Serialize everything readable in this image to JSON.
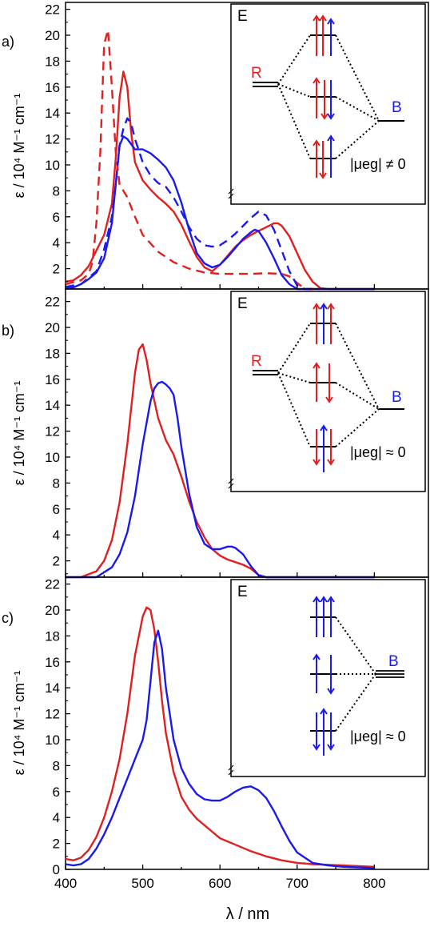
{
  "chart_data": [
    {
      "type": "line",
      "panel_label": "a)",
      "xlabel": "λ / nm",
      "ylabel": "ε / 10⁴ M⁻¹ cm⁻¹",
      "xlim": [
        400,
        870
      ],
      "ylim": [
        0,
        23
      ],
      "ytick_labels": [
        "2",
        "4",
        "6",
        "8",
        "10",
        "12",
        "14",
        "16",
        "18",
        "20",
        "22"
      ],
      "grid": false,
      "series": [
        {
          "color": "#e02020",
          "dash": false,
          "x": [
            400,
            410,
            420,
            430,
            440,
            450,
            460,
            465,
            470,
            475,
            480,
            485,
            490,
            500,
            510,
            520,
            530,
            540,
            550,
            560,
            570,
            580,
            590,
            600,
            610,
            620,
            630,
            640,
            650,
            660,
            670,
            675,
            680,
            690,
            700,
            710,
            720,
            730,
            740,
            760,
            780,
            800
          ],
          "y": [
            1.0,
            1.1,
            1.5,
            2.2,
            3.4,
            4.6,
            7.0,
            10.5,
            15.2,
            17.2,
            16.0,
            12.5,
            10.2,
            8.8,
            8.1,
            7.5,
            7.0,
            6.4,
            5.4,
            4.1,
            2.9,
            2.1,
            1.8,
            2.3,
            3.0,
            3.7,
            4.2,
            4.6,
            4.9,
            5.2,
            5.5,
            5.5,
            5.3,
            4.5,
            3.2,
            1.9,
            1.0,
            0.5,
            0.3,
            0.15,
            0.1,
            0.05
          ]
        },
        {
          "color": "#1a1aee",
          "dash": false,
          "x": [
            400,
            410,
            420,
            430,
            440,
            450,
            460,
            465,
            470,
            475,
            480,
            485,
            490,
            500,
            510,
            520,
            530,
            540,
            550,
            560,
            570,
            580,
            590,
            600,
            610,
            620,
            630,
            640,
            645,
            650,
            660,
            670,
            680,
            690,
            700,
            710,
            720,
            730,
            740,
            760,
            780,
            800
          ],
          "y": [
            0.5,
            0.55,
            0.8,
            1.2,
            1.7,
            2.8,
            5.5,
            8.5,
            11.5,
            12.2,
            12.0,
            11.6,
            11.2,
            11.2,
            10.9,
            10.4,
            9.8,
            8.8,
            7.1,
            5.0,
            3.2,
            2.4,
            2.1,
            2.3,
            2.9,
            3.6,
            4.3,
            4.8,
            5.0,
            4.9,
            4.0,
            2.8,
            1.5,
            0.8,
            0.4,
            0.2,
            0.12,
            0.08,
            0.05,
            0.02,
            0.01,
            0.01
          ]
        },
        {
          "color": "#e02020",
          "dash": true,
          "x": [
            400,
            420,
            430,
            435,
            440,
            445,
            450,
            455,
            460,
            465,
            470,
            480,
            490,
            500,
            520,
            540,
            560,
            580,
            600,
            620,
            640,
            660,
            680,
            690,
            700,
            710,
            720,
            730
          ],
          "y": [
            0.8,
            1.1,
            1.6,
            2.5,
            5.5,
            11.0,
            19.3,
            20.4,
            16.0,
            11.0,
            8.5,
            7.5,
            6.0,
            4.6,
            3.3,
            2.5,
            2.0,
            1.7,
            1.6,
            1.6,
            1.6,
            1.65,
            1.6,
            1.4,
            0.9,
            0.4,
            0.15,
            0.05
          ]
        },
        {
          "color": "#1a1aee",
          "dash": true,
          "x": [
            400,
            420,
            440,
            450,
            460,
            465,
            470,
            475,
            480,
            485,
            490,
            500,
            510,
            520,
            530,
            540,
            550,
            560,
            570,
            580,
            590,
            600,
            610,
            620,
            630,
            640,
            650,
            660,
            670,
            680,
            690,
            700,
            710,
            720,
            730
          ],
          "y": [
            0.6,
            0.8,
            1.8,
            3.5,
            6.0,
            8.5,
            11.5,
            12.8,
            13.6,
            13.2,
            12.0,
            10.2,
            9.2,
            8.6,
            8.3,
            7.5,
            6.4,
            5.2,
            4.3,
            3.8,
            3.7,
            3.8,
            4.2,
            4.7,
            5.3,
            5.9,
            6.4,
            6.1,
            5.0,
            3.4,
            1.8,
            0.7,
            0.2,
            0.05,
            0.02
          ]
        }
      ]
    },
    {
      "type": "line",
      "panel_label": "b)",
      "xlabel": "λ / nm",
      "ylabel": "ε / 10⁴ M⁻¹ cm⁻¹",
      "xlim": [
        400,
        870
      ],
      "ylim": [
        0,
        23
      ],
      "ytick_labels": [
        "2",
        "4",
        "6",
        "8",
        "10",
        "12",
        "14",
        "16",
        "18",
        "20",
        "22"
      ],
      "grid": false,
      "series": [
        {
          "color": "#e02020",
          "dash": false,
          "x": [
            400,
            420,
            440,
            450,
            460,
            470,
            480,
            490,
            495,
            500,
            505,
            510,
            520,
            530,
            540,
            550,
            560,
            570,
            580,
            590,
            600,
            610,
            620,
            630,
            640,
            650,
            660,
            680,
            700,
            720,
            740,
            750,
            755,
            760,
            770,
            780,
            800
          ],
          "y": [
            0.4,
            0.6,
            1.2,
            2.0,
            3.6,
            6.5,
            11.0,
            16.5,
            18.3,
            18.7,
            17.5,
            15.7,
            13.0,
            11.3,
            10.2,
            8.5,
            6.6,
            5.0,
            3.8,
            2.9,
            2.4,
            2.1,
            1.9,
            1.7,
            1.4,
            0.9,
            0.5,
            0.2,
            0.1,
            0.05,
            0.03,
            0.1,
            0.2,
            0.1,
            0.05,
            0.02,
            0.01
          ]
        },
        {
          "color": "#1a1aee",
          "dash": false,
          "x": [
            400,
            420,
            440,
            460,
            470,
            480,
            490,
            500,
            510,
            515,
            520,
            525,
            530,
            535,
            540,
            545,
            550,
            560,
            570,
            580,
            590,
            600,
            610,
            615,
            620,
            630,
            640,
            650,
            660,
            680,
            700,
            740,
            780,
            800
          ],
          "y": [
            0.3,
            0.4,
            0.7,
            1.5,
            2.5,
            4.2,
            7.0,
            11.0,
            14.3,
            15.3,
            15.7,
            15.8,
            15.6,
            15.3,
            14.8,
            13.0,
            10.8,
            7.2,
            4.6,
            3.3,
            2.9,
            2.9,
            3.1,
            3.1,
            3.0,
            2.5,
            1.6,
            0.9,
            0.4,
            0.15,
            0.05,
            0.02,
            0.01,
            0.01
          ]
        }
      ]
    },
    {
      "type": "line",
      "panel_label": "c)",
      "xlabel": "λ / nm",
      "ylabel": "ε / 10⁴ M⁻¹ cm⁻¹",
      "xlim": [
        400,
        870
      ],
      "ylim": [
        0,
        23
      ],
      "ytick_labels": [
        "0",
        "2",
        "4",
        "6",
        "8",
        "10",
        "12",
        "14",
        "16",
        "18",
        "20",
        "22"
      ],
      "xtick_labels": [
        "400",
        "500",
        "600",
        "700",
        "800"
      ],
      "grid": false,
      "series": [
        {
          "color": "#e02020",
          "dash": false,
          "x": [
            400,
            410,
            420,
            430,
            440,
            450,
            460,
            470,
            480,
            490,
            500,
            505,
            510,
            515,
            520,
            525,
            530,
            540,
            550,
            560,
            570,
            580,
            590,
            600,
            620,
            640,
            660,
            680,
            700,
            720,
            740,
            760,
            780,
            800
          ],
          "y": [
            0.8,
            0.7,
            0.9,
            1.5,
            2.5,
            4.0,
            6.0,
            8.5,
            12.0,
            16.5,
            19.5,
            20.2,
            20.0,
            18.5,
            16.0,
            13.0,
            10.5,
            7.5,
            5.6,
            4.6,
            3.9,
            3.4,
            2.9,
            2.4,
            1.9,
            1.4,
            1.0,
            0.7,
            0.5,
            0.4,
            0.35,
            0.3,
            0.25,
            0.2
          ]
        },
        {
          "color": "#1a1aee",
          "dash": false,
          "x": [
            400,
            410,
            420,
            430,
            440,
            450,
            460,
            470,
            480,
            490,
            500,
            505,
            510,
            515,
            520,
            525,
            530,
            540,
            550,
            560,
            570,
            580,
            590,
            600,
            610,
            620,
            630,
            640,
            650,
            660,
            670,
            680,
            690,
            700,
            720,
            740,
            760,
            780,
            800
          ],
          "y": [
            0.4,
            0.3,
            0.4,
            0.8,
            1.6,
            2.7,
            4.0,
            5.5,
            7.0,
            8.5,
            10.0,
            11.5,
            14.5,
            17.5,
            18.4,
            17.0,
            14.0,
            10.0,
            7.8,
            6.6,
            5.8,
            5.4,
            5.3,
            5.3,
            5.6,
            6.0,
            6.3,
            6.4,
            6.1,
            5.5,
            4.5,
            3.3,
            2.2,
            1.3,
            0.5,
            0.3,
            0.2,
            0.15,
            0.1
          ]
        }
      ]
    }
  ],
  "insets": [
    {
      "energy_label": "E",
      "left_label": "R",
      "right_label": "B",
      "mu_label": "|μeg| ≠ 0"
    },
    {
      "energy_label": "E",
      "left_label": "R",
      "right_label": "B",
      "mu_label": "|μeg| ≈ 0"
    },
    {
      "energy_label": "E",
      "right_label": "B",
      "mu_label": "|μeg| ≈ 0"
    }
  ],
  "colors": {
    "red": "#e02020",
    "blue": "#1a1aee"
  }
}
